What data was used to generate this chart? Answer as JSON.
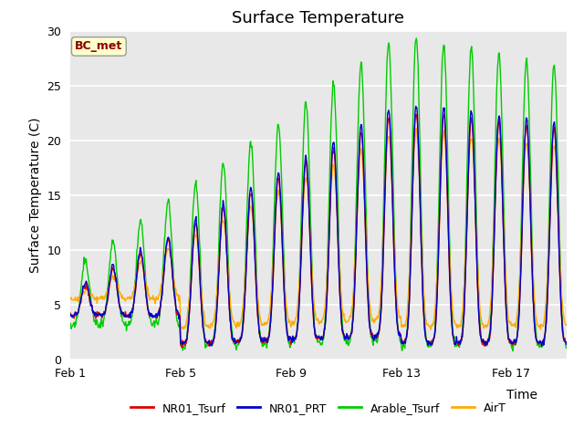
{
  "title": "Surface Temperature",
  "ylabel": "Surface Temperature (C)",
  "xlabel": "Time",
  "ylim": [
    0,
    30
  ],
  "yticks": [
    0,
    5,
    10,
    15,
    20,
    25,
    30
  ],
  "xtick_labels": [
    "Feb 1",
    "Feb 5",
    "Feb 9",
    "Feb 13",
    "Feb 17"
  ],
  "xtick_positions": [
    0,
    4,
    8,
    12,
    16
  ],
  "n_days": 19,
  "samples_per_day": 48,
  "lines": [
    {
      "label": "NR01_Tsurf",
      "color": "#dd0000"
    },
    {
      "label": "NR01_PRT",
      "color": "#0000cc"
    },
    {
      "label": "Arable_Tsurf",
      "color": "#00cc00"
    },
    {
      "label": "AirT",
      "color": "#ffaa00"
    }
  ],
  "bc_met_label": "BC_met",
  "bc_met_color": "#8b0000",
  "bc_met_bg": "#ffffcc",
  "plot_bg": "#e8e8e8",
  "title_fontsize": 13,
  "axis_label_fontsize": 10,
  "tick_fontsize": 9,
  "legend_fontsize": 9,
  "line_width": 1.0
}
